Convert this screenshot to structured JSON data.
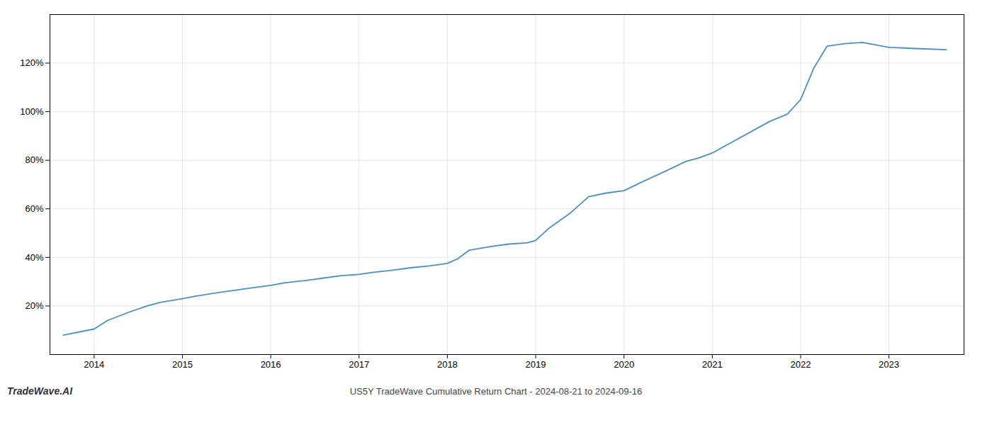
{
  "chart_data": {
    "type": "line",
    "title": "US5Y TradeWave Cumulative Return Chart - 2024-08-21 to 2024-09-16",
    "annotations": [
      "TradeWave.AI"
    ],
    "color": "#4a90c4",
    "grid": true,
    "x": [
      2013.65,
      2014.0,
      2014.15,
      2014.4,
      2014.6,
      2014.75,
      2015.0,
      2015.15,
      2015.4,
      2015.6,
      2015.8,
      2016.0,
      2016.15,
      2016.4,
      2016.6,
      2016.8,
      2017.0,
      2017.15,
      2017.4,
      2017.6,
      2017.8,
      2018.0,
      2018.12,
      2018.25,
      2018.5,
      2018.7,
      2018.9,
      2019.0,
      2019.15,
      2019.4,
      2019.6,
      2019.8,
      2020.0,
      2020.2,
      2020.5,
      2020.7,
      2020.85,
      2021.0,
      2021.2,
      2021.5,
      2021.65,
      2021.85,
      2022.0,
      2022.15,
      2022.3,
      2022.5,
      2022.7,
      2022.85,
      2023.0,
      2023.3,
      2023.65
    ],
    "values": [
      8.0,
      10.5,
      14.0,
      17.5,
      20.0,
      21.5,
      23.0,
      24.0,
      25.5,
      26.5,
      27.5,
      28.5,
      29.5,
      30.5,
      31.5,
      32.5,
      33.0,
      33.8,
      34.8,
      35.8,
      36.5,
      37.5,
      39.5,
      43.0,
      44.5,
      45.5,
      46.0,
      47.0,
      52.0,
      58.5,
      65.0,
      66.5,
      67.5,
      71.0,
      76.0,
      79.5,
      81.0,
      83.0,
      87.0,
      93.0,
      96.0,
      99.0,
      105.0,
      118.0,
      127.0,
      128.0,
      128.5,
      127.5,
      126.5,
      126.0,
      125.5
    ],
    "xlim": [
      2013.5,
      2023.85
    ],
    "xticks": [
      2014,
      2015,
      2016,
      2017,
      2018,
      2019,
      2020,
      2021,
      2022,
      2023
    ],
    "ylim": [
      0,
      140
    ],
    "yticks": [
      {
        "value": 20,
        "label": "20%"
      },
      {
        "value": 40,
        "label": "40%"
      },
      {
        "value": 60,
        "label": "60%"
      },
      {
        "value": 80,
        "label": "80%"
      },
      {
        "value": 100,
        "label": "100%"
      },
      {
        "value": 120,
        "label": "120%"
      }
    ]
  }
}
